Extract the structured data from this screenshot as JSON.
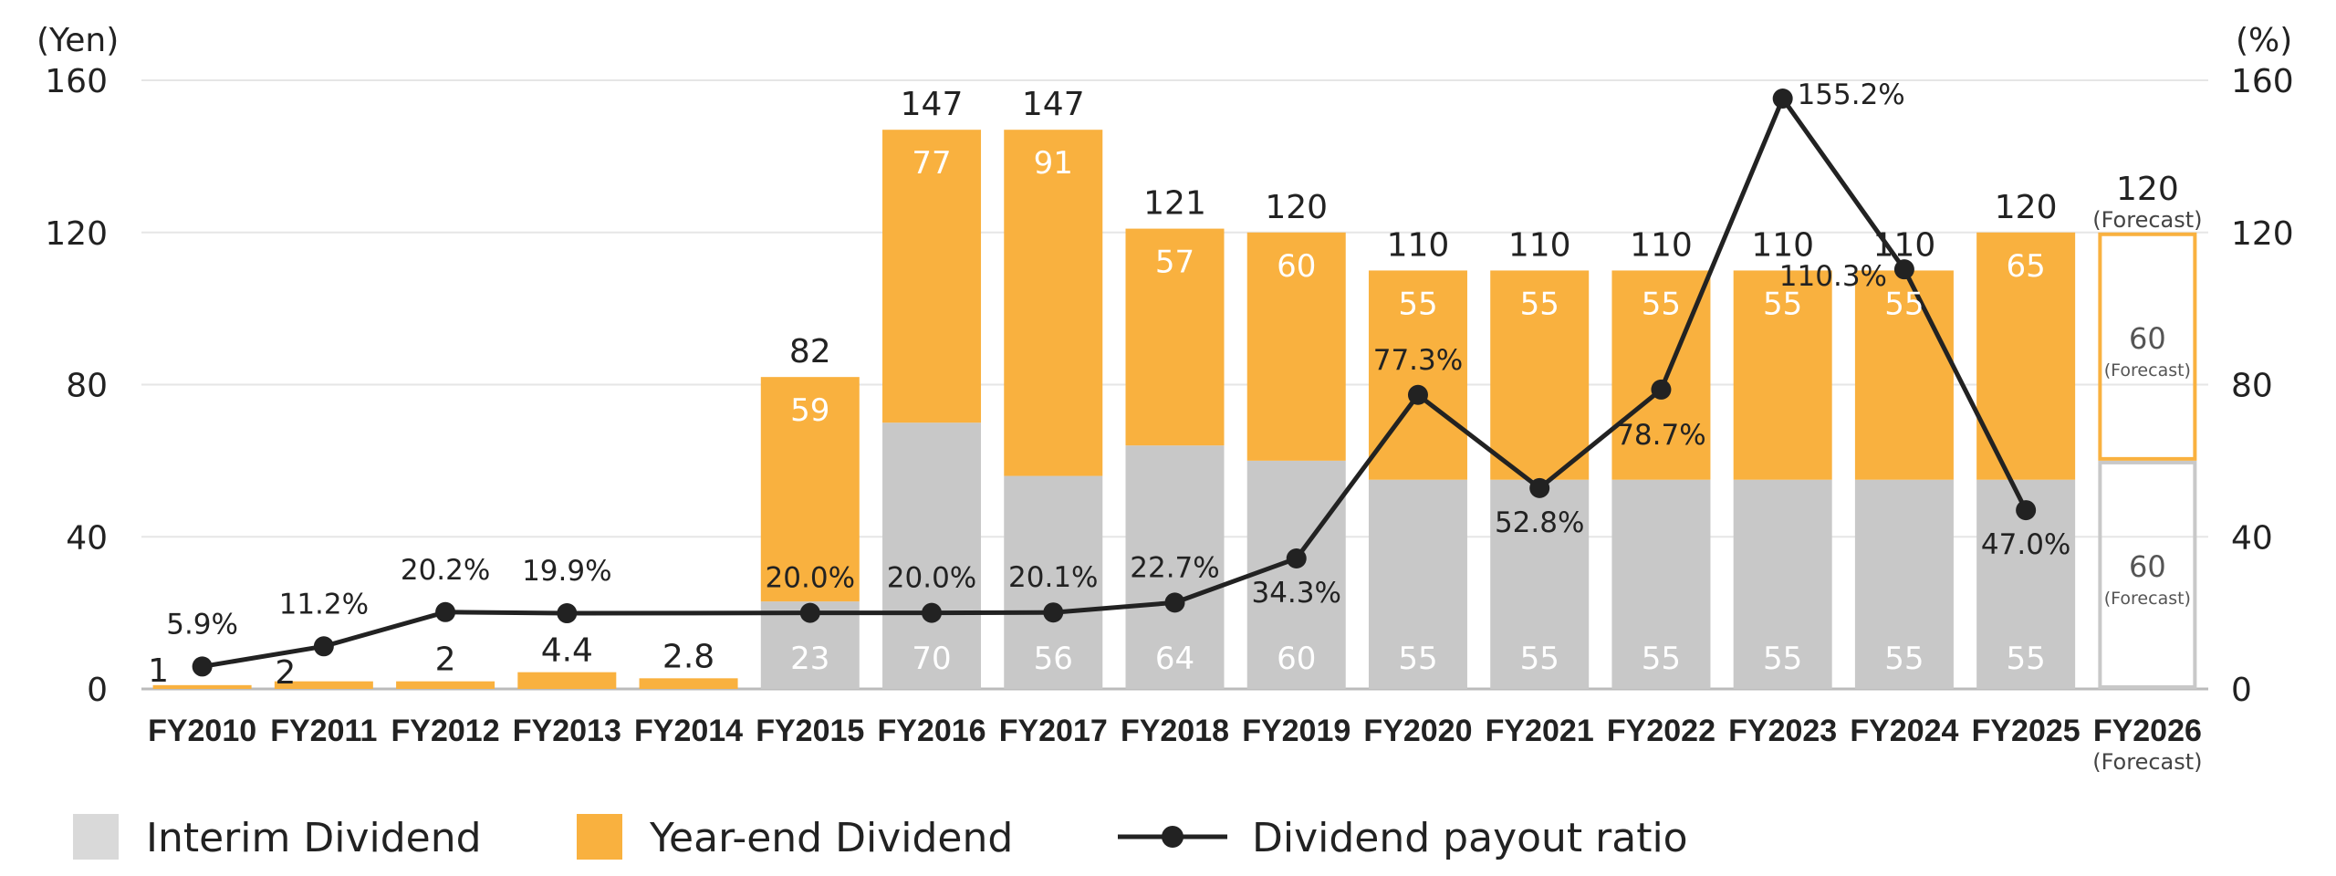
{
  "chart_data": {
    "type": "bar",
    "stacked": true,
    "left_axis_unit": "(Yen)",
    "right_axis_unit": "(%)",
    "ylim": [
      0,
      160
    ],
    "y2lim": [
      0,
      160
    ],
    "yticks": [
      "0",
      "40",
      "80",
      "120",
      "160"
    ],
    "categories": [
      "FY2010",
      "FY2011",
      "FY2012",
      "FY2013",
      "FY2014",
      "FY2015",
      "FY2016",
      "FY2017",
      "FY2018",
      "FY2019",
      "FY2020",
      "FY2021",
      "FY2022",
      "FY2023",
      "FY2024",
      "FY2025",
      "FY2026"
    ],
    "category_notes": [
      "",
      "",
      "",
      "",
      "",
      "",
      "",
      "",
      "",
      "",
      "",
      "",
      "",
      "",
      "",
      "",
      "(Forecast)"
    ],
    "interim": [
      0,
      0,
      0,
      0,
      0,
      23,
      70,
      56,
      64,
      60,
      55,
      55,
      55,
      55,
      55,
      55,
      60
    ],
    "interim_labels": [
      "",
      "",
      "",
      "",
      "",
      "23",
      "70",
      "56",
      "64",
      "60",
      "55",
      "55",
      "55",
      "55",
      "55",
      "55",
      "60"
    ],
    "year_end": [
      1,
      2,
      2,
      4.4,
      2.8,
      59,
      77,
      91,
      57,
      60,
      55,
      55,
      55,
      55,
      55,
      65,
      60
    ],
    "year_end_labels": [
      "",
      "",
      "",
      "",
      "",
      "59",
      "77",
      "91",
      "57",
      "60",
      "55",
      "55",
      "55",
      "55",
      "55",
      "65",
      "60"
    ],
    "totals": [
      "1",
      "2",
      "2",
      "4.4",
      "2.8",
      "82",
      "147",
      "147",
      "121",
      "120",
      "110",
      "110",
      "110",
      "110",
      "110",
      "120",
      "120"
    ],
    "payout_ratio": [
      5.9,
      11.2,
      20.2,
      19.9,
      null,
      20.0,
      20.0,
      20.1,
      22.7,
      34.3,
      77.3,
      52.8,
      78.7,
      155.2,
      110.3,
      47.0,
      null
    ],
    "payout_labels": [
      "5.9%",
      "11.2%",
      "20.2%",
      "19.9%",
      "",
      "20.0%",
      "20.0%",
      "20.1%",
      "22.7%",
      "34.3%",
      "77.3%",
      "52.8%",
      "78.7%",
      "155.2%",
      "110.3%",
      "47.0%",
      ""
    ],
    "forecast_note": "(Forecast)",
    "series": [
      {
        "name": "Interim Dividend",
        "color": "#c8c8c8"
      },
      {
        "name": "Year-end Dividend",
        "color": "#f9b13f"
      },
      {
        "name": "Dividend payout ratio",
        "color": "#222222"
      }
    ],
    "grid": true,
    "legend_position": "bottom-left"
  }
}
